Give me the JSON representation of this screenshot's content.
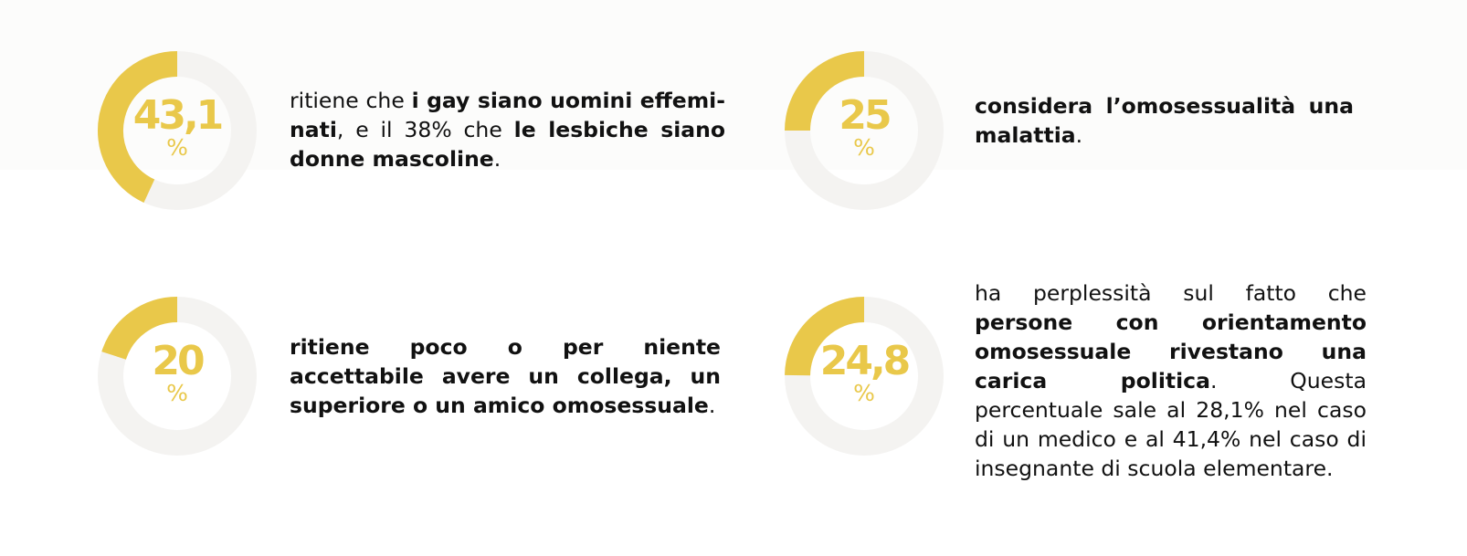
{
  "colors": {
    "accent": "#e9c84a",
    "track": "#f4f3f1",
    "text": "#111111"
  },
  "chart_data": [
    {
      "type": "pie",
      "value": 43.1,
      "value_label": "43,1",
      "unit": "%",
      "segments": [
        {
          "text": "ritiene che ",
          "bold": false
        },
        {
          "text": "i gay siano uomini effemi-nati",
          "bold": true
        },
        {
          "text": ", e il 38% che ",
          "bold": false
        },
        {
          "text": "le lesbiche siano donne mascoline",
          "bold": true
        },
        {
          "text": ".",
          "bold": false
        }
      ]
    },
    {
      "type": "pie",
      "value": 25,
      "value_label": "25",
      "unit": "%",
      "segments": [
        {
          "text": "considera l’omosessualità una malattia",
          "bold": true
        },
        {
          "text": ".",
          "bold": false
        }
      ]
    },
    {
      "type": "pie",
      "value": 20,
      "value_label": "20",
      "unit": "%",
      "segments": [
        {
          "text": "ritiene poco o per niente accettabile avere un collega, un superiore o un amico omosessuale",
          "bold": true
        },
        {
          "text": ".",
          "bold": false
        }
      ]
    },
    {
      "type": "pie",
      "value": 24.8,
      "value_label": "24,8",
      "unit": "%",
      "segments": [
        {
          "text": "ha perplessità sul fatto che ",
          "bold": false
        },
        {
          "text": "persone con orientamento omosessuale rivestano una carica politica",
          "bold": true
        },
        {
          "text": ". Questa percentuale sale al 28,1% nel caso di  un medico e al 41,4% nel caso di insegnante di scuola elementare.",
          "bold": false
        }
      ]
    }
  ]
}
